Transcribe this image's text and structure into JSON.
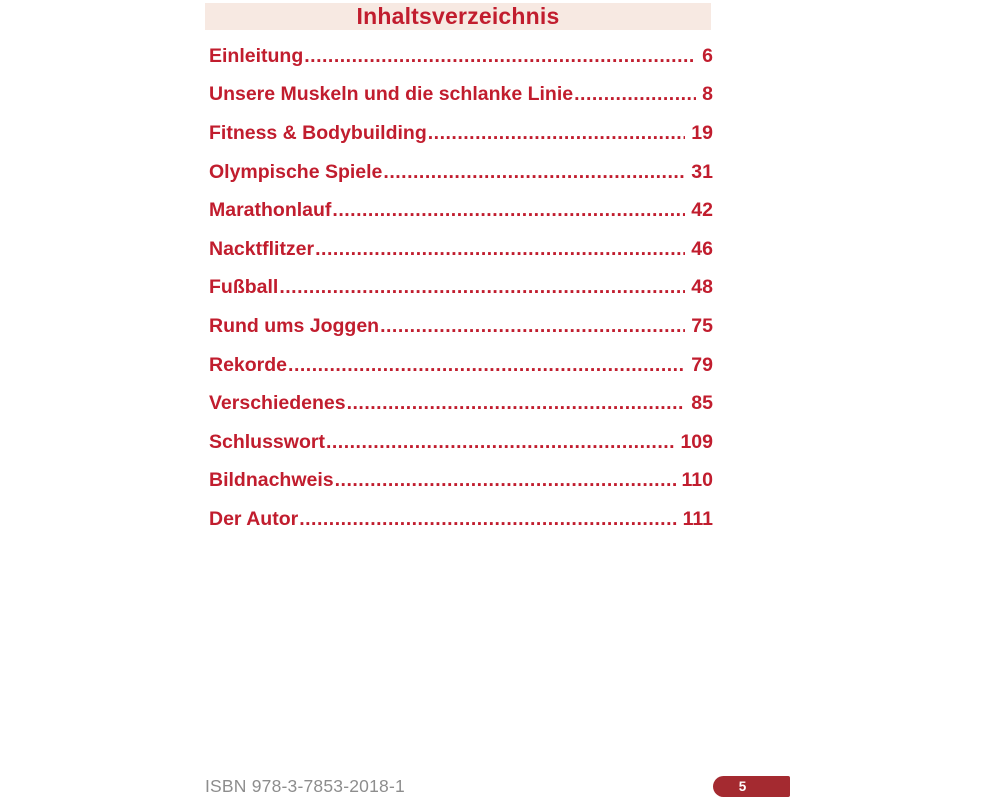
{
  "page": {
    "title": "Inhaltsverzeichnis",
    "leader_char": ".",
    "entries": [
      {
        "label": "Einleitung",
        "page": "6"
      },
      {
        "label": "Unsere Muskeln und die schlanke Linie",
        "page": "8"
      },
      {
        "label": "Fitness & Bodybuilding",
        "page": "19"
      },
      {
        "label": "Olympische Spiele",
        "page": "31"
      },
      {
        "label": "Marathonlauf",
        "page": "42"
      },
      {
        "label": "Nacktflitzer",
        "page": "46"
      },
      {
        "label": "Fußball",
        "page": "48"
      },
      {
        "label": "Rund ums Joggen",
        "page": "75"
      },
      {
        "label": "Rekorde",
        "page": "79"
      },
      {
        "label": "Verschiedenes",
        "page": "85"
      },
      {
        "label": "Schlusswort",
        "page": "109"
      },
      {
        "label": "Bildnachweis",
        "page": "110"
      },
      {
        "label": "Der Autor",
        "page": "111"
      }
    ],
    "footer": {
      "isbn": "ISBN 978-3-7853-2018-1",
      "page_number": "5"
    },
    "colors": {
      "entry_red": "#c11d2e",
      "badge_red": "#a42a30",
      "title_bg": "#f7e9e2",
      "isbn_gray": "#8d8d8d"
    }
  }
}
